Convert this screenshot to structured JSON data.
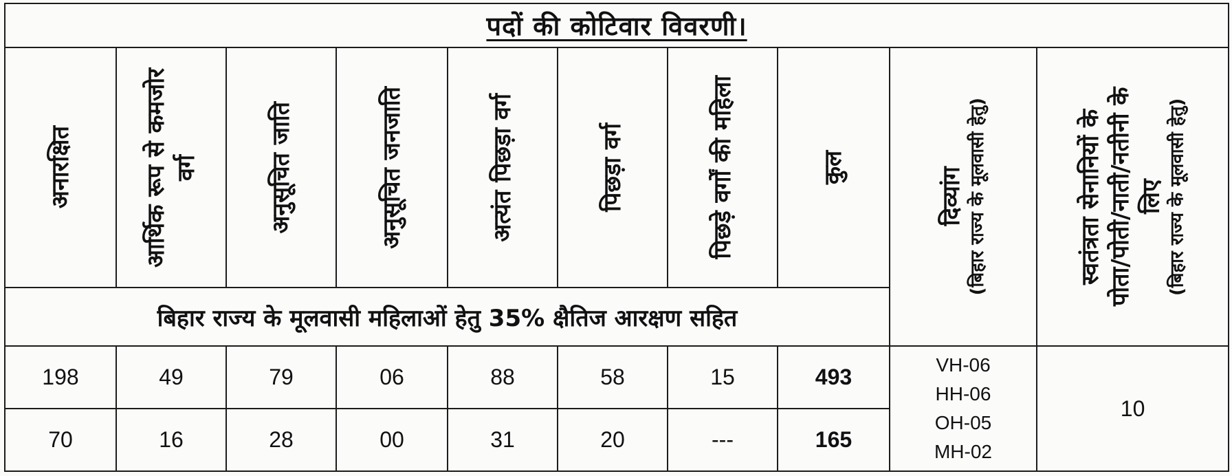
{
  "title": "पदों की कोटिवार विवरणी।",
  "headers": [
    {
      "label": "अनारक्षित",
      "sub": ""
    },
    {
      "label": "आर्थिक रूप से कमजोर वर्ग",
      "sub": ""
    },
    {
      "label": "अनुसूचित जाति",
      "sub": ""
    },
    {
      "label": "अनुसूचित जनजाति",
      "sub": ""
    },
    {
      "label": "अत्यंत पिछड़ा वर्ग",
      "sub": ""
    },
    {
      "label": "पिछड़ा वर्ग",
      "sub": ""
    },
    {
      "label": "पिछड़े वर्गों की महिला",
      "sub": ""
    },
    {
      "label": "कुल",
      "sub": ""
    },
    {
      "label": "दिव्यांग",
      "sub": "(बिहार राज्य के मूलवासी हेतु)"
    },
    {
      "label": "स्वतंत्रता सेनानियों के पोता/पोती/नाती/नतीनी के लिए",
      "sub": "(बिहार राज्य के मूलवासी हेतु)"
    }
  ],
  "note": "बिहार राज्य के मूलवासी महिलाओं हेतु 35% क्षैतिज आरक्षण सहित",
  "rows": [
    [
      "198",
      "49",
      "79",
      "06",
      "88",
      "58",
      "15",
      "493"
    ],
    [
      "70",
      "16",
      "28",
      "00",
      "31",
      "20",
      "---",
      "165"
    ]
  ],
  "divyang": [
    "VH-06",
    "HH-06",
    "OH-05",
    "MH-02"
  ],
  "freedom_fighter_quota": "10"
}
